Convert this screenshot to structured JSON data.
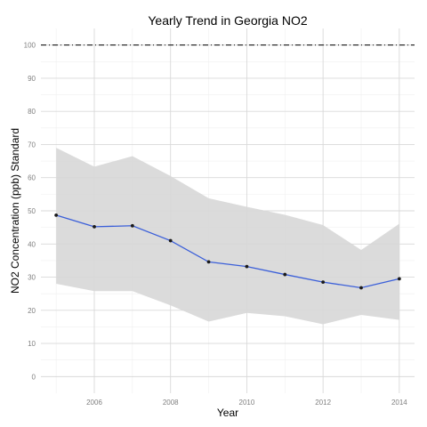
{
  "chart_data": {
    "type": "line",
    "title": "Yearly Trend in Georgia NO2",
    "xlabel": "Year",
    "ylabel": "NO2 Concentration (ppb) Standard",
    "xlim": [
      2004.6,
      2014.4
    ],
    "ylim": [
      -5,
      105
    ],
    "x_ticks": [
      2006,
      2008,
      2010,
      2012,
      2014
    ],
    "y_ticks": [
      0,
      10,
      20,
      30,
      40,
      50,
      60,
      70,
      80,
      90,
      100
    ],
    "grid": true,
    "x": [
      2005,
      2006,
      2007,
      2008,
      2009,
      2010,
      2011,
      2012,
      2013,
      2014
    ],
    "series": [
      {
        "values": [
          48.7,
          45.2,
          45.5,
          41.0,
          34.6,
          33.2,
          30.8,
          28.5,
          26.8,
          29.5
        ],
        "color": "#3b5fd9"
      }
    ],
    "band": {
      "upper": [
        69.0,
        63.3,
        66.5,
        60.5,
        53.8,
        51.2,
        48.8,
        45.7,
        38.2,
        46.1
      ],
      "lower": [
        28.0,
        25.8,
        25.8,
        21.5,
        16.6,
        19.2,
        18.2,
        15.8,
        18.6,
        17.1
      ],
      "color": "#d7d7d7"
    },
    "reference_line": {
      "y": 100,
      "style": "dashdot",
      "color": "#000000"
    },
    "colors": {
      "panel_background": "#ffffff",
      "grid_major": "#d9d9d9",
      "grid_minor": "#efefef",
      "point": "#1a1a1a"
    }
  }
}
